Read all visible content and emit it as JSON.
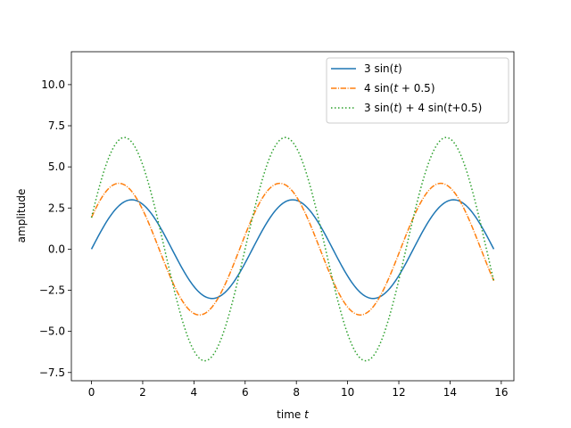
{
  "chart_data": {
    "type": "line",
    "title": "",
    "xlabel": "time",
    "xlabel_var": "t",
    "ylabel": "amplitude",
    "xlim": [
      -0.785,
      16.493
    ],
    "ylim": [
      -8.0,
      12.0
    ],
    "xticks": [
      0,
      2,
      4,
      6,
      8,
      10,
      12,
      14,
      16
    ],
    "xtick_labels": [
      "0",
      "2",
      "4",
      "6",
      "8",
      "10",
      "12",
      "14",
      "16"
    ],
    "yticks": [
      -7.5,
      -5.0,
      -2.5,
      0.0,
      2.5,
      5.0,
      7.5,
      10.0
    ],
    "ytick_labels": [
      "−7.5",
      "−5.0",
      "−2.5",
      "0.0",
      "2.5",
      "5.0",
      "7.5",
      "10.0"
    ],
    "grid": false,
    "legend_location": "top-right",
    "x_range": [
      0,
      15.708
    ],
    "num_points": 300,
    "series": [
      {
        "name": "3 sin(t)",
        "legend_parts": [
          [
            "3 sin(",
            "normal"
          ],
          [
            "t",
            "italic"
          ],
          [
            ")",
            "normal"
          ]
        ],
        "formula": {
          "a1": 3,
          "p1": 0,
          "a2": 0,
          "p2": 0
        },
        "color": "#1f77b4",
        "dash": ""
      },
      {
        "name": "4 sin(t + 0.5)",
        "legend_parts": [
          [
            "4 sin(",
            "normal"
          ],
          [
            "t",
            "italic"
          ],
          [
            " + 0.5)",
            "normal"
          ]
        ],
        "formula": {
          "a1": 0,
          "p1": 0,
          "a2": 4,
          "p2": 0.5
        },
        "color": "#ff7f0e",
        "dash": "6.4,1.6,1,1.6"
      },
      {
        "name": "3 sin(t) + 4 sin(t+0.5)",
        "legend_parts": [
          [
            "3 sin(",
            "normal"
          ],
          [
            "t",
            "italic"
          ],
          [
            ") + 4 sin(",
            "normal"
          ],
          [
            "t",
            "italic"
          ],
          [
            "+0.5)",
            "normal"
          ]
        ],
        "formula": {
          "a1": 3,
          "p1": 0,
          "a2": 4,
          "p2": 0.5
        },
        "color": "#2ca02c",
        "dash": "1.5,2.5"
      }
    ]
  }
}
